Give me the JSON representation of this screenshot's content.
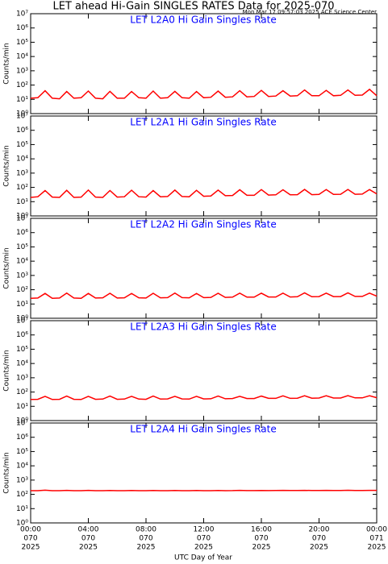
{
  "title": "LET ahead Hi-Gain SINGLES RATES Data for 2025-070",
  "subtitle": "Mon Mar 17 09:57:03 2025 ACE Science Center",
  "chart_data": [
    {
      "type": "line",
      "title": "LET L2A0 Hi Gain Singles Rate",
      "ylabel": "Counts/min",
      "log_y": true,
      "color": "#ff0000",
      "xlim": [
        0,
        24
      ],
      "xticks": [
        0,
        4,
        8,
        12,
        16,
        20,
        24
      ],
      "ylim": [
        1,
        10000000
      ],
      "yticks": [
        {
          "value": 1,
          "label": "10⁰"
        },
        {
          "value": 10,
          "label": "10¹"
        },
        {
          "value": 100,
          "label": "10²"
        },
        {
          "value": 1000,
          "label": "10³"
        },
        {
          "value": 10000,
          "label": "10⁴"
        },
        {
          "value": 100000,
          "label": "10⁵"
        },
        {
          "value": 1000000,
          "label": "10⁶"
        },
        {
          "value": 10000000,
          "label": "10⁷"
        }
      ],
      "x": [
        0,
        0.5,
        1,
        1.5,
        2,
        2.5,
        3,
        3.5,
        4,
        4.5,
        5,
        5.5,
        6,
        6.5,
        7,
        7.5,
        8,
        8.5,
        9,
        9.5,
        10,
        10.5,
        11,
        11.5,
        12,
        12.5,
        13,
        13.5,
        14,
        14.5,
        15,
        15.5,
        16,
        16.5,
        17,
        17.5,
        18,
        18.5,
        19,
        19.5,
        20,
        20.5,
        21,
        21.5,
        22,
        22.5,
        23,
        23.5,
        24
      ],
      "values": [
        12,
        13,
        40,
        12,
        11,
        35,
        12,
        13,
        38,
        12,
        11,
        36,
        12,
        12,
        35,
        13,
        12,
        38,
        12,
        13,
        36,
        13,
        12,
        35,
        13,
        14,
        38,
        14,
        15,
        40,
        15,
        16,
        42,
        16,
        17,
        40,
        17,
        18,
        45,
        18,
        18,
        42,
        18,
        19,
        45,
        19,
        20,
        50,
        18
      ]
    },
    {
      "type": "line",
      "title": "LET L2A1 Hi Gain Singles Rate",
      "ylabel": "Counts/min",
      "log_y": true,
      "color": "#ff0000",
      "xlim": [
        0,
        24
      ],
      "xticks": [
        0,
        4,
        8,
        12,
        16,
        20,
        24
      ],
      "ylim": [
        1,
        10000000
      ],
      "yticks": [
        {
          "value": 1,
          "label": "10⁰"
        },
        {
          "value": 10,
          "label": "10¹"
        },
        {
          "value": 100,
          "label": "10²"
        },
        {
          "value": 1000,
          "label": "10³"
        },
        {
          "value": 10000,
          "label": "10⁴"
        },
        {
          "value": 100000,
          "label": "10⁵"
        },
        {
          "value": 1000000,
          "label": "10⁶"
        },
        {
          "value": 10000000,
          "label": "10⁷"
        }
      ],
      "x": [
        0,
        0.5,
        1,
        1.5,
        2,
        2.5,
        3,
        3.5,
        4,
        4.5,
        5,
        5.5,
        6,
        6.5,
        7,
        7.5,
        8,
        8.5,
        9,
        9.5,
        10,
        10.5,
        11,
        11.5,
        12,
        12.5,
        13,
        13.5,
        14,
        14.5,
        15,
        15.5,
        16,
        16.5,
        17,
        17.5,
        18,
        18.5,
        19,
        19.5,
        20,
        20.5,
        21,
        21.5,
        22,
        22.5,
        23,
        23.5,
        24
      ],
      "values": [
        20,
        22,
        60,
        21,
        20,
        62,
        20,
        21,
        65,
        21,
        20,
        60,
        21,
        22,
        63,
        22,
        21,
        60,
        22,
        23,
        65,
        23,
        22,
        62,
        24,
        25,
        65,
        26,
        27,
        68,
        28,
        28,
        70,
        29,
        30,
        68,
        30,
        31,
        72,
        31,
        32,
        70,
        32,
        33,
        72,
        33,
        34,
        70,
        35
      ]
    },
    {
      "type": "line",
      "title": "LET L2A2 Hi Gain Singles Rate",
      "ylabel": "Counts/min",
      "log_y": true,
      "color": "#ff0000",
      "xlim": [
        0,
        24
      ],
      "xticks": [
        0,
        4,
        8,
        12,
        16,
        20,
        24
      ],
      "ylim": [
        1,
        10000000
      ],
      "yticks": [
        {
          "value": 1,
          "label": "10⁰"
        },
        {
          "value": 10,
          "label": "10¹"
        },
        {
          "value": 100,
          "label": "10²"
        },
        {
          "value": 1000,
          "label": "10³"
        },
        {
          "value": 10000,
          "label": "10⁴"
        },
        {
          "value": 100000,
          "label": "10⁵"
        },
        {
          "value": 1000000,
          "label": "10⁶"
        },
        {
          "value": 10000000,
          "label": "10⁷"
        }
      ],
      "x": [
        0,
        0.5,
        1,
        1.5,
        2,
        2.5,
        3,
        3.5,
        4,
        4.5,
        5,
        5.5,
        6,
        6.5,
        7,
        7.5,
        8,
        8.5,
        9,
        9.5,
        10,
        10.5,
        11,
        11.5,
        12,
        12.5,
        13,
        13.5,
        14,
        14.5,
        15,
        15.5,
        16,
        16.5,
        17,
        17.5,
        18,
        18.5,
        19,
        19.5,
        20,
        20.5,
        21,
        21.5,
        22,
        22.5,
        23,
        23.5,
        24
      ],
      "values": [
        25,
        26,
        55,
        25,
        26,
        58,
        26,
        25,
        55,
        26,
        27,
        56,
        26,
        27,
        55,
        27,
        26,
        56,
        27,
        28,
        58,
        28,
        27,
        55,
        28,
        29,
        56,
        29,
        30,
        58,
        30,
        30,
        57,
        31,
        31,
        58,
        31,
        32,
        60,
        32,
        33,
        58,
        33,
        33,
        60,
        34,
        34,
        58,
        35
      ]
    },
    {
      "type": "line",
      "title": "LET L2A3 Hi Gain Singles Rate",
      "ylabel": "Counts/min",
      "log_y": true,
      "color": "#ff0000",
      "xlim": [
        0,
        24
      ],
      "xticks": [
        0,
        4,
        8,
        12,
        16,
        20,
        24
      ],
      "ylim": [
        1,
        10000000
      ],
      "yticks": [
        {
          "value": 1,
          "label": "10⁰"
        },
        {
          "value": 10,
          "label": "10¹"
        },
        {
          "value": 100,
          "label": "10²"
        },
        {
          "value": 1000,
          "label": "10³"
        },
        {
          "value": 10000,
          "label": "10⁴"
        },
        {
          "value": 100000,
          "label": "10⁵"
        },
        {
          "value": 1000000,
          "label": "10⁶"
        },
        {
          "value": 10000000,
          "label": "10⁷"
        }
      ],
      "x": [
        0,
        0.5,
        1,
        1.5,
        2,
        2.5,
        3,
        3.5,
        4,
        4.5,
        5,
        5.5,
        6,
        6.5,
        7,
        7.5,
        8,
        8.5,
        9,
        9.5,
        10,
        10.5,
        11,
        11.5,
        12,
        12.5,
        13,
        13.5,
        14,
        14.5,
        15,
        15.5,
        16,
        16.5,
        17,
        17.5,
        18,
        18.5,
        19,
        19.5,
        20,
        20.5,
        21,
        21.5,
        22,
        22.5,
        23,
        23.5,
        24
      ],
      "values": [
        30,
        31,
        50,
        30,
        31,
        52,
        31,
        30,
        50,
        31,
        32,
        52,
        31,
        32,
        50,
        32,
        31,
        52,
        32,
        33,
        50,
        33,
        32,
        50,
        33,
        34,
        52,
        34,
        35,
        50,
        35,
        35,
        52,
        36,
        36,
        54,
        36,
        37,
        55,
        37,
        38,
        55,
        38,
        38,
        56,
        39,
        39,
        55,
        40
      ]
    },
    {
      "type": "line",
      "title": "LET L2A4 Hi Gain Singles Rate",
      "ylabel": "Counts/min",
      "xlabel": "UTC Day of Year",
      "log_y": true,
      "color": "#ff0000",
      "xlim": [
        0,
        24
      ],
      "xticks": [
        {
          "value": 0,
          "label": [
            "00:00",
            "070",
            "2025"
          ]
        },
        {
          "value": 4,
          "label": [
            "04:00",
            "070",
            "2025"
          ]
        },
        {
          "value": 8,
          "label": [
            "08:00",
            "070",
            "2025"
          ]
        },
        {
          "value": 12,
          "label": [
            "12:00",
            "070",
            "2025"
          ]
        },
        {
          "value": 16,
          "label": [
            "16:00",
            "070",
            "2025"
          ]
        },
        {
          "value": 20,
          "label": [
            "20:00",
            "070",
            "2025"
          ]
        },
        {
          "value": 24,
          "label": [
            "00:00",
            "071",
            "2025"
          ]
        }
      ],
      "ylim": [
        1,
        10000000
      ],
      "yticks": [
        {
          "value": 1,
          "label": "10⁰"
        },
        {
          "value": 10,
          "label": "10¹"
        },
        {
          "value": 100,
          "label": "10²"
        },
        {
          "value": 1000,
          "label": "10³"
        },
        {
          "value": 10000,
          "label": "10⁴"
        },
        {
          "value": 100000,
          "label": "10⁵"
        },
        {
          "value": 1000000,
          "label": "10⁶"
        },
        {
          "value": 10000000,
          "label": "10⁷"
        }
      ],
      "x": [
        0,
        0.5,
        1,
        1.5,
        2,
        2.5,
        3,
        3.5,
        4,
        4.5,
        5,
        5.5,
        6,
        6.5,
        7,
        7.5,
        8,
        8.5,
        9,
        9.5,
        10,
        10.5,
        11,
        11.5,
        12,
        12.5,
        13,
        13.5,
        14,
        14.5,
        15,
        15.5,
        16,
        16.5,
        17,
        17.5,
        18,
        18.5,
        19,
        19.5,
        20,
        20.5,
        21,
        21.5,
        22,
        22.5,
        23,
        23.5,
        24
      ],
      "values": [
        180,
        182,
        195,
        181,
        180,
        192,
        182,
        181,
        190,
        180,
        181,
        188,
        181,
        180,
        187,
        181,
        182,
        186,
        182,
        181,
        185,
        180,
        181,
        186,
        181,
        182,
        188,
        182,
        183,
        190,
        183,
        184,
        188,
        184,
        185,
        190,
        185,
        186,
        192,
        186,
        187,
        190,
        187,
        188,
        194,
        188,
        189,
        192,
        190
      ]
    }
  ]
}
